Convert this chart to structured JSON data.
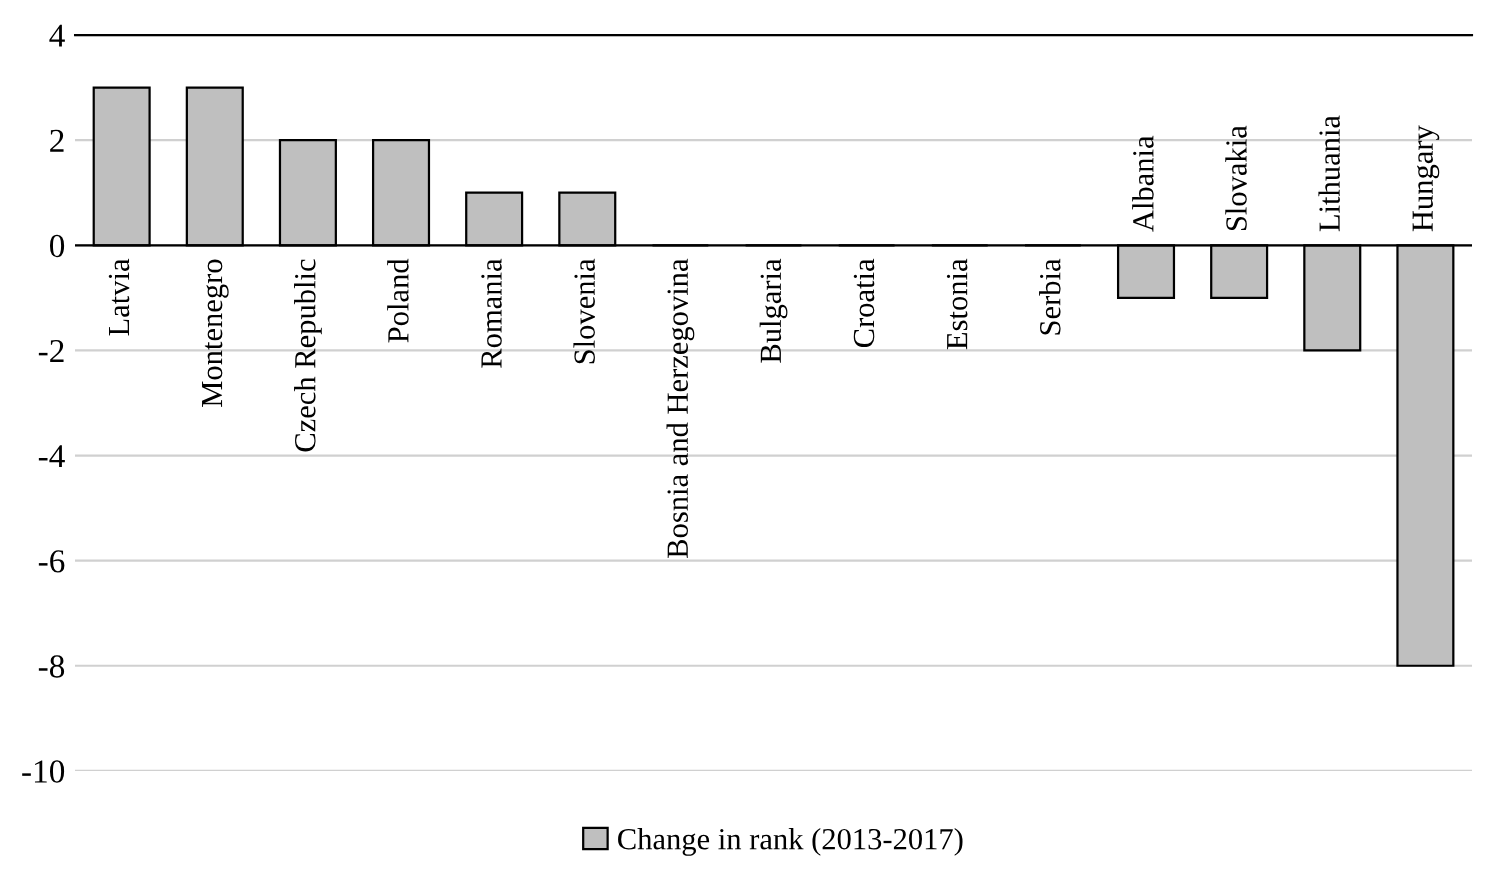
{
  "chart_data": {
    "type": "bar",
    "categories": [
      "Latvia",
      "Montenegro",
      "Czech Republic",
      "Poland",
      "Romania",
      "Slovenia",
      "Bosnia and Herzegovina",
      "Bulgaria",
      "Croatia",
      "Estonia",
      "Serbia",
      "Albania",
      "Slovakia",
      "Lithuania",
      "Hungary"
    ],
    "series": [
      {
        "name": "Change in rank (2013-2017)",
        "color": "#bfbfbf",
        "values": [
          3,
          3,
          2,
          2,
          1,
          1,
          0,
          0,
          0,
          0,
          0,
          -1,
          -1,
          -2,
          -8
        ]
      }
    ],
    "ylim": [
      -10,
      4
    ],
    "yticks": [
      -10,
      -8,
      -6,
      -4,
      -2,
      0,
      2,
      4
    ],
    "grid": "y",
    "legend": "bottom",
    "tick_labels": "y"
  }
}
